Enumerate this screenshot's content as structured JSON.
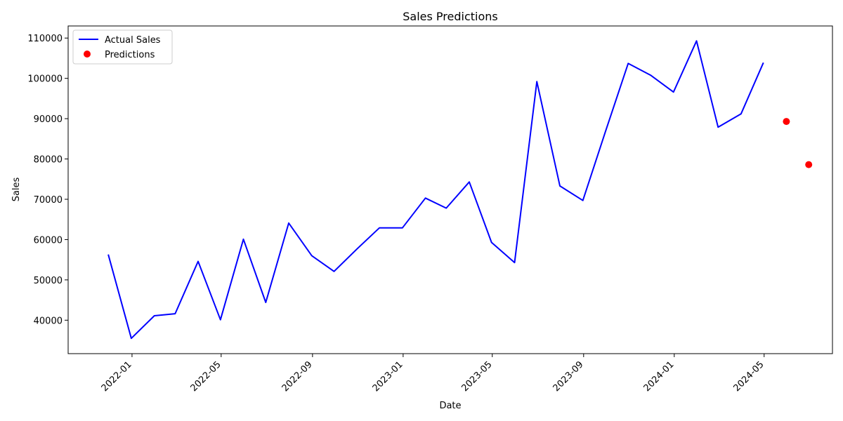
{
  "chart_data": {
    "type": "line",
    "title": "Sales Predictions",
    "xlabel": "Date",
    "ylabel": "Sales",
    "x_tick_labels": [
      "2022-01",
      "2022-05",
      "2022-09",
      "2023-01",
      "2023-05",
      "2023-09",
      "2024-01",
      "2024-05"
    ],
    "y_tick_labels": [
      "40000",
      "50000",
      "60000",
      "70000",
      "80000",
      "90000",
      "100000",
      "110000"
    ],
    "y_ticks": [
      40000,
      50000,
      60000,
      70000,
      80000,
      90000,
      100000,
      110000
    ],
    "xlim": [
      "2021-10-07",
      "2024-08-01"
    ],
    "ylim": [
      31700,
      113000
    ],
    "grid": false,
    "legend_position": "top-left",
    "series": [
      {
        "name": "Actual Sales",
        "kind": "line",
        "color": "#0000ff",
        "x": [
          "2021-11-30",
          "2021-12-31",
          "2022-01-31",
          "2022-02-28",
          "2022-03-31",
          "2022-04-30",
          "2022-05-31",
          "2022-06-30",
          "2022-07-31",
          "2022-08-31",
          "2022-09-30",
          "2022-10-31",
          "2022-11-30",
          "2022-12-31",
          "2023-01-31",
          "2023-02-28",
          "2023-03-31",
          "2023-04-30",
          "2023-05-31",
          "2023-06-30",
          "2023-07-31",
          "2023-08-31",
          "2023-09-30",
          "2023-10-31",
          "2023-11-30",
          "2023-12-31",
          "2024-01-31",
          "2024-02-29",
          "2024-03-31",
          "2024-04-30"
        ],
        "values": [
          56300,
          35500,
          41100,
          41600,
          54600,
          40100,
          60100,
          44400,
          64100,
          56000,
          52100,
          57700,
          62900,
          62900,
          70300,
          67800,
          74300,
          59300,
          54300,
          99200,
          73300,
          69700,
          86600,
          103700,
          100800,
          96600,
          109300,
          87900,
          91200,
          103900
        ]
      },
      {
        "name": "Predictions",
        "kind": "scatter",
        "color": "#ff0000",
        "x": [
          "2024-05-31",
          "2024-06-30"
        ],
        "values": [
          89300,
          78600
        ]
      }
    ]
  }
}
